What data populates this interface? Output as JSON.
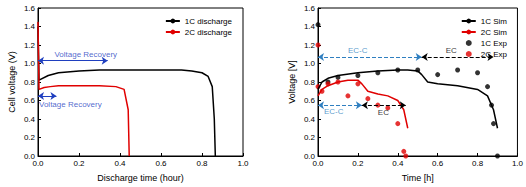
{
  "chart_data": [
    {
      "type": "line",
      "x_label": "Discharge time (hour)",
      "y_label": "Cell voltage (V)",
      "xlim": [
        0,
        1.0
      ],
      "xticks": [
        {
          "value": 0,
          "label": "0.0"
        },
        0.2,
        0.4,
        0.6,
        0.8,
        {
          "value": 1.0,
          "label": "1.0"
        }
      ],
      "ylim": [
        0,
        1.6
      ],
      "yticks": [
        {
          "value": 0,
          "label": "0.0"
        },
        0.2,
        0.4,
        0.6,
        0.8,
        {
          "value": 1.0,
          "label": "1.0"
        },
        1.2,
        1.4,
        1.6
      ],
      "grid": false,
      "legend": "top-right",
      "series": [
        {
          "name": "1C discharge",
          "color": "#000000",
          "type": "line",
          "line_style": "solid",
          "x": [
            0,
            0.005,
            0.05,
            0.1,
            0.2,
            0.3,
            0.4,
            0.5,
            0.6,
            0.7,
            0.75,
            0.8,
            0.83,
            0.85,
            0.86,
            0.865
          ],
          "values": [
            1.4,
            0.82,
            0.87,
            0.9,
            0.92,
            0.93,
            0.93,
            0.93,
            0.93,
            0.93,
            0.92,
            0.9,
            0.86,
            0.75,
            0.4,
            0
          ]
        },
        {
          "name": "2C discharge",
          "color": "#e00000",
          "type": "line",
          "line_style": "solid",
          "x": [
            0,
            0.005,
            0.03,
            0.06,
            0.1,
            0.2,
            0.3,
            0.38,
            0.42,
            0.44,
            0.445
          ],
          "values": [
            1.45,
            0.72,
            0.74,
            0.75,
            0.76,
            0.76,
            0.76,
            0.75,
            0.72,
            0.5,
            0
          ]
        }
      ],
      "annotations": [
        {
          "text": "Voltage Recovery",
          "x": 0.08,
          "y": 1.1,
          "arrow_x": [
            0,
            0.34
          ],
          "arrow_y": 1.03,
          "color": "#1f3fbf",
          "line_style": "solid"
        },
        {
          "text": "Voltage Recovery",
          "x": 0.005,
          "y": 0.56,
          "arrow_x": [
            0,
            0.09
          ],
          "arrow_y": 0.65,
          "color": "#1f3fbf",
          "line_style": "solid"
        }
      ]
    },
    {
      "type": "line",
      "x_label": "Time [h]",
      "y_label": "Voltage [V]",
      "xlim": [
        0,
        1.0
      ],
      "xticks": [
        {
          "value": 0,
          "label": "0.0"
        },
        0.2,
        0.4,
        0.6,
        0.8,
        {
          "value": 1.0,
          "label": "1.0"
        }
      ],
      "ylim": [
        0,
        1.6
      ],
      "yticks": [
        {
          "value": 0,
          "label": "0.0"
        },
        0.2,
        0.4,
        0.6,
        0.8,
        {
          "value": 1.0,
          "label": "1.0"
        },
        1.2,
        1.4,
        1.6
      ],
      "grid": false,
      "legend": "top-right",
      "series": [
        {
          "name": "1C Sim",
          "color": "#000000",
          "type": "line",
          "line_style": "solid",
          "x": [
            0,
            0.02,
            0.05,
            0.1,
            0.2,
            0.3,
            0.4,
            0.45,
            0.5,
            0.52,
            0.55,
            0.6,
            0.7,
            0.8,
            0.85,
            0.88,
            0.9
          ],
          "values": [
            0.72,
            0.8,
            0.84,
            0.87,
            0.9,
            0.92,
            0.93,
            0.93,
            0.92,
            0.88,
            0.8,
            0.78,
            0.76,
            0.72,
            0.65,
            0.5,
            0.3
          ]
        },
        {
          "name": "2C Sim",
          "color": "#e00000",
          "type": "line",
          "line_style": "solid",
          "x": [
            0,
            0.02,
            0.05,
            0.1,
            0.15,
            0.2,
            0.22,
            0.25,
            0.3,
            0.35,
            0.4,
            0.43,
            0.45
          ],
          "values": [
            0.65,
            0.72,
            0.76,
            0.8,
            0.82,
            0.82,
            0.78,
            0.7,
            0.67,
            0.65,
            0.6,
            0.5,
            0.3
          ]
        },
        {
          "name": "1C Exp",
          "color": "#000000",
          "type": "scatter",
          "marker": "circle",
          "x": [
            0,
            0.05,
            0.1,
            0.2,
            0.3,
            0.4,
            0.5,
            0.6,
            0.7,
            0.8,
            0.85,
            0.87,
            0.88,
            0.9
          ],
          "values": [
            1.42,
            0.8,
            0.85,
            0.87,
            0.9,
            0.93,
            0.93,
            0.88,
            0.93,
            0.9,
            0.75,
            0.55,
            0.35,
            0
          ]
        },
        {
          "name": "2C Exp",
          "color": "#e00000",
          "type": "scatter",
          "marker": "circle",
          "x": [
            0,
            0,
            0.02,
            0.05,
            0.1,
            0.15,
            0.2,
            0.25,
            0.3,
            0.35,
            0.4,
            0.43,
            0.44
          ],
          "values": [
            1.2,
            0.75,
            0.7,
            0.78,
            0.8,
            0.65,
            0.78,
            0.62,
            0.55,
            0.52,
            0.35,
            0.05,
            0
          ]
        }
      ],
      "annotations": [
        {
          "text": "EC-C",
          "x": 0.15,
          "y": 1.14,
          "arrow_x": [
            0,
            0.52
          ],
          "arrow_y": 1.07,
          "color": "#2f7fc0",
          "line_style": "dashed"
        },
        {
          "text": "EC",
          "x": 0.64,
          "y": 1.14,
          "arrow_x": [
            0.52,
            0.88
          ],
          "arrow_y": 1.07,
          "color": "#000000",
          "line_style": "dashed"
        },
        {
          "text": "EC-C",
          "x": 0.03,
          "y": 0.48,
          "arrow_x": [
            0,
            0.22
          ],
          "arrow_y": 0.55,
          "color": "#2f7fc0",
          "line_style": "dashed"
        },
        {
          "text": "EC",
          "x": 0.3,
          "y": 0.47,
          "arrow_x": [
            0.22,
            0.44
          ],
          "arrow_y": 0.55,
          "color": "#000000",
          "line_style": "dashed"
        }
      ]
    }
  ]
}
